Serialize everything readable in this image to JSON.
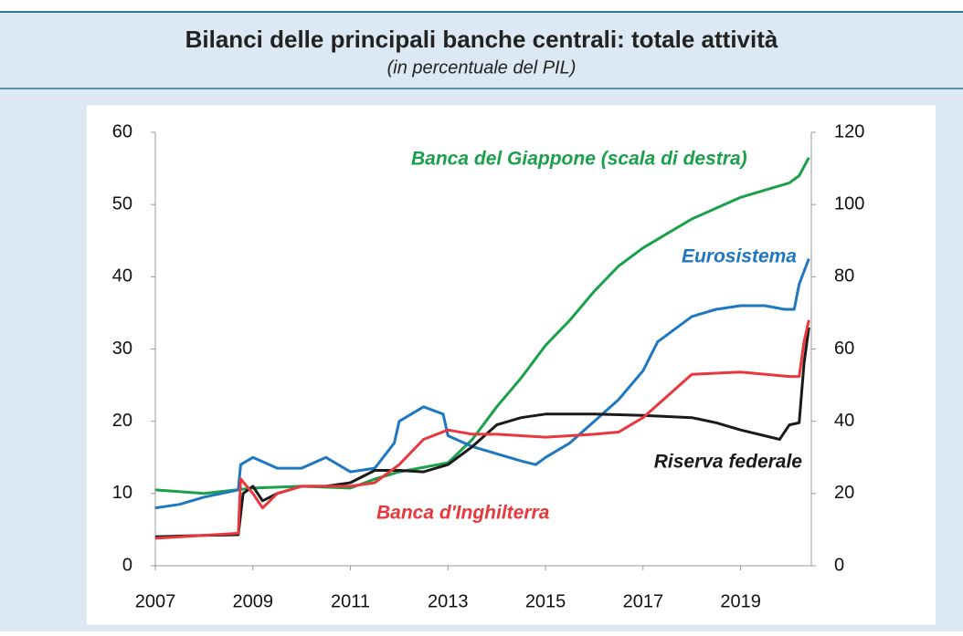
{
  "chart_data": {
    "type": "line",
    "title": "Bilanci delle principali banche centrali: totale attività",
    "subtitle": "(in percentuale del PIL)",
    "xlim": [
      2007,
      2020.45
    ],
    "xticks": [
      2007,
      2009,
      2011,
      2013,
      2015,
      2017,
      2019
    ],
    "ylim": [
      0,
      60
    ],
    "yticks": [
      0,
      10,
      20,
      30,
      40,
      50,
      60
    ],
    "y2lim": [
      0,
      120
    ],
    "y2ticks": [
      0,
      20,
      40,
      60,
      80,
      100,
      120
    ],
    "grid": false,
    "series": [
      {
        "name": "Banca del Giappone (scala di destra)",
        "color": "#1aa04a",
        "axis": "y2",
        "x": [
          2007,
          2008,
          2009,
          2010,
          2011,
          2011.5,
          2012,
          2013,
          2013.5,
          2014,
          2014.5,
          2015,
          2015.5,
          2016,
          2016.5,
          2017,
          2017.5,
          2018,
          2018.5,
          2019,
          2019.5,
          2020,
          2020.2,
          2020.4
        ],
        "values": [
          21,
          20,
          21.5,
          22,
          21.5,
          24,
          26,
          28.5,
          35,
          44,
          52,
          61,
          68,
          76,
          83,
          88,
          92,
          96,
          99,
          102,
          104,
          106,
          108,
          113
        ]
      },
      {
        "name": "Eurosistema",
        "color": "#1f77c0",
        "x": [
          2007,
          2007.5,
          2008,
          2008.7,
          2008.75,
          2009,
          2009.5,
          2010,
          2010.5,
          2011,
          2011.5,
          2011.9,
          2012,
          2012.5,
          2012.9,
          2013,
          2013.5,
          2014,
          2014.5,
          2014.8,
          2015,
          2015.5,
          2016,
          2016.5,
          2017,
          2017.3,
          2017.5,
          2018,
          2018.5,
          2019,
          2019.5,
          2019.9,
          2020.1,
          2020.2,
          2020.4
        ],
        "values": [
          8,
          8.5,
          9.5,
          10.5,
          14,
          15,
          13.5,
          13.5,
          15,
          13,
          13.5,
          17,
          20,
          22,
          21,
          18,
          16.5,
          15.5,
          14.5,
          14,
          15,
          17,
          20,
          23,
          27,
          31,
          32,
          34.5,
          35.5,
          36,
          36,
          35.5,
          35.5,
          39,
          42.5
        ]
      },
      {
        "name": "Riserva federale",
        "color": "#1a1a1a",
        "x": [
          2007,
          2008,
          2008.7,
          2008.8,
          2009,
          2009.2,
          2009.5,
          2010,
          2010.5,
          2011,
          2011.5,
          2012,
          2012.5,
          2013,
          2013.5,
          2014,
          2014.5,
          2015,
          2016,
          2017,
          2018,
          2018.5,
          2019,
          2019.8,
          2020,
          2020.2,
          2020.3,
          2020.4
        ],
        "values": [
          4,
          4.2,
          4.3,
          10,
          11,
          9,
          10,
          11,
          11,
          11.5,
          13.2,
          13.2,
          13,
          14,
          16.5,
          19.5,
          20.5,
          21,
          21,
          20.8,
          20.5,
          19.8,
          18.8,
          17.5,
          19.5,
          19.8,
          28,
          33
        ]
      },
      {
        "name": "Banca d'Inghilterra",
        "color": "#e8383d",
        "x": [
          2007,
          2008,
          2008.7,
          2008.75,
          2009,
          2009.2,
          2009.5,
          2010,
          2011,
          2011.5,
          2012,
          2012.5,
          2013,
          2013.5,
          2014,
          2015,
          2016,
          2016.5,
          2017,
          2017.5,
          2018,
          2019,
          2020,
          2020.2,
          2020.3,
          2020.4
        ],
        "values": [
          3.8,
          4.2,
          4.5,
          12,
          10,
          8,
          10,
          11,
          11,
          11.5,
          14,
          17.5,
          18.8,
          18.2,
          18.2,
          17.8,
          18.2,
          18.5,
          20.5,
          23.5,
          26.5,
          26.8,
          26.2,
          26.2,
          31,
          34
        ]
      }
    ]
  }
}
